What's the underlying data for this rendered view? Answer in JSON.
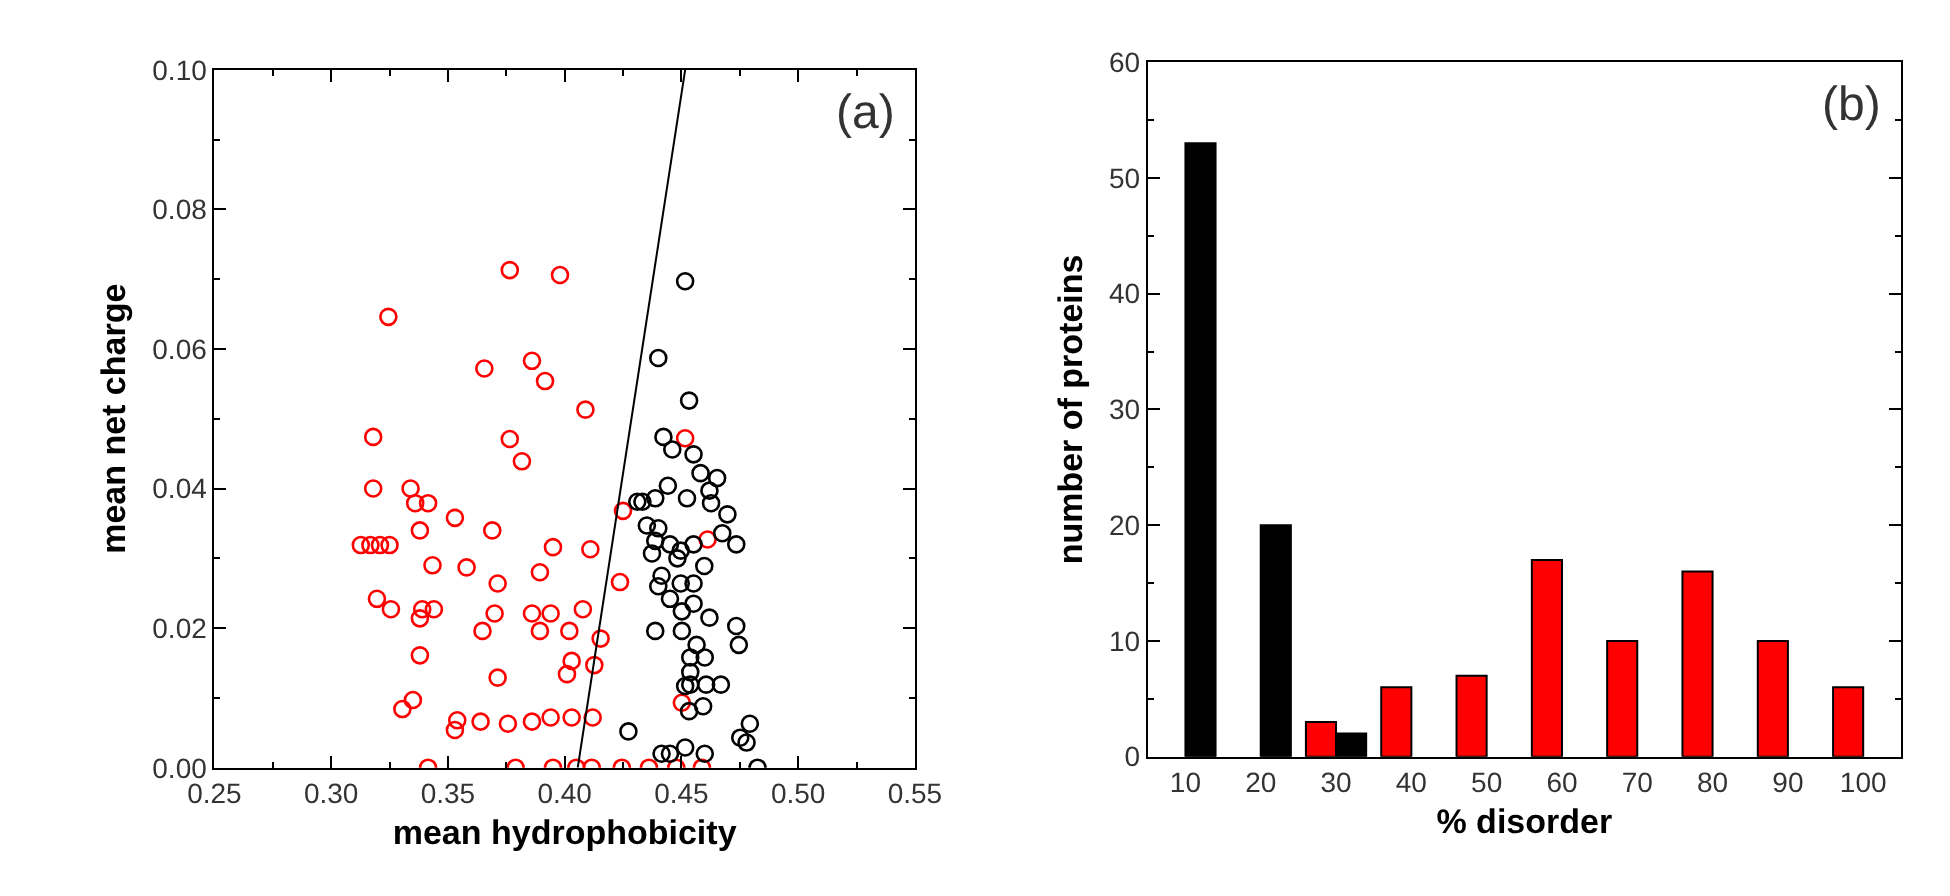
{
  "chart_data": [
    {
      "type": "scatter",
      "xlabel": "mean hydrophobicity",
      "ylabel": "mean net charge",
      "annotations": [
        "(a)"
      ],
      "marker": "circle",
      "xlim": [
        0.25,
        0.55
      ],
      "xticks": [
        {
          "value": 0.25,
          "label": "0.25"
        },
        {
          "value": 0.3,
          "label": "0.30"
        },
        {
          "value": 0.35,
          "label": "0.35"
        },
        {
          "value": 0.4,
          "label": "0.40"
        },
        {
          "value": 0.45,
          "label": "0.45"
        },
        {
          "value": 0.5,
          "label": "0.50"
        },
        {
          "value": 0.55,
          "label": "0.55"
        }
      ],
      "ylim": [
        0,
        0.1
      ],
      "yticks": [
        {
          "value": 0,
          "label": "0.00"
        },
        {
          "value": 0.02,
          "label": "0.02"
        },
        {
          "value": 0.04,
          "label": "0.04"
        },
        {
          "value": 0.06,
          "label": "0.06"
        },
        {
          "value": 0.08,
          "label": "0.08"
        },
        {
          "value": 0.1,
          "label": "0.10"
        }
      ],
      "series": [
        {
          "color": "#ff0000",
          "x": [
            0.3245,
            0.3765,
            0.398,
            0.3656,
            0.386,
            0.3916,
            0.4089,
            0.318,
            0.3765,
            0.3817,
            0.318,
            0.334,
            0.336,
            0.3415,
            0.353,
            0.338,
            0.369,
            0.3127,
            0.3168,
            0.3209,
            0.325,
            0.395,
            0.411,
            0.3434,
            0.358,
            0.3894,
            0.3713,
            0.3196,
            0.3256,
            0.339,
            0.344,
            0.338,
            0.37,
            0.386,
            0.394,
            0.4078,
            0.3648,
            0.3894,
            0.402,
            0.338,
            0.3713,
            0.403,
            0.401,
            0.4127,
            0.4154,
            0.335,
            0.3305,
            0.353,
            0.354,
            0.364,
            0.3757,
            0.386,
            0.394,
            0.403,
            0.412,
            0.3415,
            0.379,
            0.395,
            0.405,
            0.4116,
            0.425,
            0.4237,
            0.4516,
            0.4612,
            0.4502,
            0.4245,
            0.4361,
            0.4478,
            0.4588
          ],
          "values": [
            0.0646,
            0.0713,
            0.0706,
            0.0572,
            0.0583,
            0.0554,
            0.0513,
            0.0474,
            0.0471,
            0.0439,
            0.04,
            0.04,
            0.0379,
            0.0379,
            0.0358,
            0.034,
            0.034,
            0.0319,
            0.0319,
            0.0319,
            0.0319,
            0.0316,
            0.0313,
            0.029,
            0.0287,
            0.028,
            0.0264,
            0.0242,
            0.0227,
            0.0227,
            0.0227,
            0.0214,
            0.0221,
            0.0221,
            0.0221,
            0.0227,
            0.0196,
            0.0196,
            0.0196,
            0.0161,
            0.0129,
            0.0153,
            0.0134,
            0.0147,
            0.0185,
            0.0097,
            0.0084,
            0.0054,
            0.0068,
            0.0066,
            0.0063,
            0.0066,
            0.0072,
            0.0072,
            0.0072,
            0,
            0,
            0,
            0,
            0,
            0.0368,
            0.0266,
            0.0472,
            0.0327,
            0.0093,
            0,
            0,
            0,
            0
          ]
        },
        {
          "color": "#000000",
          "x": [
            0.4516,
            0.4401,
            0.4533,
            0.4423,
            0.4461,
            0.4552,
            0.4582,
            0.4653,
            0.4442,
            0.462,
            0.4627,
            0.4524,
            0.4311,
            0.4333,
            0.4388,
            0.4697,
            0.4352,
            0.4401,
            0.4388,
            0.4451,
            0.4497,
            0.4552,
            0.4675,
            0.4735,
            0.4374,
            0.4483,
            0.4598,
            0.4415,
            0.4401,
            0.4497,
            0.4552,
            0.4451,
            0.4552,
            0.4502,
            0.462,
            0.4735,
            0.4746,
            0.4388,
            0.4502,
            0.4565,
            0.4538,
            0.46,
            0.4538,
            0.4516,
            0.4538,
            0.4606,
            0.4669,
            0.4533,
            0.4593,
            0.4273,
            0.4793,
            0.4752,
            0.4779,
            0.4415,
            0.4451,
            0.4516,
            0.46,
            0.4826
          ],
          "values": [
            0.0697,
            0.0587,
            0.0526,
            0.0474,
            0.0456,
            0.0449,
            0.0422,
            0.0415,
            0.0404,
            0.0397,
            0.0379,
            0.0386,
            0.0381,
            0.0381,
            0.0386,
            0.0363,
            0.0347,
            0.0343,
            0.0325,
            0.032,
            0.0311,
            0.032,
            0.0336,
            0.032,
            0.0307,
            0.03,
            0.0289,
            0.0275,
            0.026,
            0.0264,
            0.0264,
            0.0242,
            0.0235,
            0.0224,
            0.0215,
            0.0203,
            0.0176,
            0.0196,
            0.0196,
            0.0176,
            0.0158,
            0.0158,
            0.0137,
            0.0117,
            0.0119,
            0.0119,
            0.0119,
            0.0081,
            0.0088,
            0.0052,
            0.0063,
            0.0043,
            0.0036,
            0.002,
            0.002,
            0.0029,
            0.002,
            0
          ]
        },
        {
          "type": "line",
          "color": "#000000",
          "marker": "none",
          "line_style": "solid",
          "x": [
            0.4056,
            0.4516
          ],
          "values": [
            0,
            0.1
          ]
        }
      ]
    },
    {
      "type": "bar",
      "xlabel": "% disorder",
      "ylabel": "number of proteins",
      "annotations": [
        "(b)"
      ],
      "categories": [
        "10",
        "20",
        "30",
        "40",
        "50",
        "60",
        "70",
        "80",
        "90",
        "100"
      ],
      "ylim": [
        0,
        60
      ],
      "yticks": [
        0,
        10,
        20,
        30,
        40,
        50,
        60
      ],
      "series": [
        {
          "color": "#ff0000",
          "values": [
            null,
            null,
            3,
            6,
            7,
            17,
            10,
            16,
            10,
            6
          ]
        },
        {
          "color": "#000000",
          "values": [
            53,
            20,
            2,
            null,
            null,
            null,
            null,
            null,
            null,
            null
          ]
        }
      ]
    }
  ]
}
